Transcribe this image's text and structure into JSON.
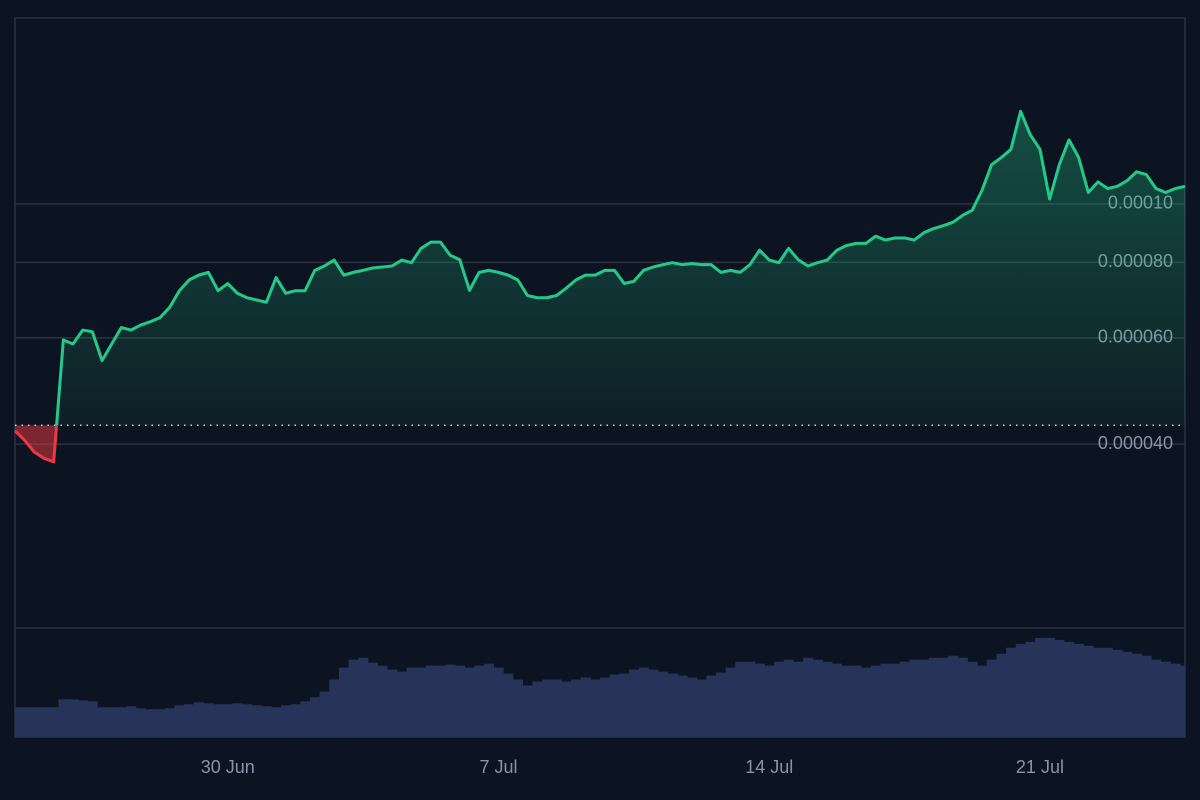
{
  "chart_data": {
    "type": "line",
    "log_scale": true,
    "grid": true,
    "baseline": 4.3e-05,
    "up_color": "#22c98a",
    "down_color": "#ea3943",
    "ylim": [
      2e-05,
      0.0002
    ],
    "yticks": [
      {
        "value": 4e-05,
        "label": "0.000040"
      },
      {
        "value": 6e-05,
        "label": "0.000060"
      },
      {
        "value": 8e-05,
        "label": "0.000080"
      },
      {
        "value": 0.0001,
        "label": "0.00010"
      }
    ],
    "categories": [
      null,
      null,
      null,
      null,
      null,
      null,
      null,
      null,
      null,
      null,
      null,
      null,
      null,
      null,
      null,
      null,
      null,
      null,
      null,
      null,
      null,
      null,
      "30 Jun",
      null,
      null,
      null,
      null,
      null,
      null,
      null,
      null,
      null,
      null,
      null,
      null,
      null,
      null,
      null,
      null,
      null,
      null,
      null,
      null,
      null,
      null,
      null,
      null,
      null,
      null,
      null,
      "7 Jul",
      null,
      null,
      null,
      null,
      null,
      null,
      null,
      null,
      null,
      null,
      null,
      null,
      null,
      null,
      null,
      null,
      null,
      null,
      null,
      null,
      null,
      null,
      null,
      null,
      null,
      null,
      null,
      "14 Jul",
      null,
      null,
      null,
      null,
      null,
      null,
      null,
      null,
      null,
      null,
      null,
      null,
      null,
      null,
      null,
      null,
      null,
      null,
      null,
      null,
      null,
      null,
      null,
      null,
      null,
      null,
      null,
      "21 Jul",
      null,
      null,
      null,
      null,
      null,
      null,
      null,
      null,
      null,
      null,
      null,
      null,
      null,
      null,
      null
    ],
    "series": [
      {
        "values": [
          4.21e-05,
          4.06e-05,
          3.88e-05,
          3.79e-05,
          3.74e-05,
          5.95e-05,
          5.86e-05,
          6.18e-05,
          6.14e-05,
          5.5e-05,
          5.86e-05,
          6.24e-05,
          6.18e-05,
          6.3e-05,
          6.38e-05,
          6.48e-05,
          6.74e-05,
          7.18e-05,
          7.48e-05,
          7.62e-05,
          7.7e-05,
          7.18e-05,
          7.38e-05,
          7.11e-05,
          6.99e-05,
          6.93e-05,
          6.87e-05,
          7.55e-05,
          7.11e-05,
          7.18e-05,
          7.18e-05,
          7.76e-05,
          7.89e-05,
          8.07e-05,
          7.62e-05,
          7.7e-05,
          7.76e-05,
          7.83e-05,
          7.86e-05,
          7.89e-05,
          8.07e-05,
          7.99e-05,
          8.44e-05,
          8.64e-05,
          8.64e-05,
          8.22e-05,
          8.08e-05,
          7.19e-05,
          7.7e-05,
          7.76e-05,
          7.7e-05,
          7.62e-05,
          7.48e-05,
          7.05e-05,
          6.99e-05,
          6.99e-05,
          7.05e-05,
          7.25e-05,
          7.48e-05,
          7.62e-05,
          7.62e-05,
          7.76e-05,
          7.76e-05,
          7.38e-05,
          7.44e-05,
          7.76e-05,
          7.86e-05,
          7.93e-05,
          7.99e-05,
          7.93e-05,
          7.96e-05,
          7.93e-05,
          7.93e-05,
          7.7e-05,
          7.76e-05,
          7.7e-05,
          7.93e-05,
          8.38e-05,
          8.07e-05,
          7.99e-05,
          8.44e-05,
          8.08e-05,
          7.89e-05,
          7.99e-05,
          8.07e-05,
          8.38e-05,
          8.53e-05,
          8.6e-05,
          8.6e-05,
          8.84e-05,
          8.71e-05,
          8.78e-05,
          8.78e-05,
          8.71e-05,
          8.96e-05,
          9.1e-05,
          9.2e-05,
          9.32e-05,
          9.57e-05,
          9.76e-05,
          0.0001052,
          0.0001161,
          0.0001193,
          0.0001231,
          0.0001423,
          0.0001301,
          0.0001231,
          0.0001018,
          0.0001161,
          0.0001276,
          0.0001193,
          0.0001044,
          0.0001087,
          0.000106,
          0.0001069,
          0.0001092,
          0.000113,
          0.0001118,
          0.000106,
          0.0001044,
          0.000106,
          0.0001069
        ]
      }
    ],
    "volume": {
      "color": "#28335a",
      "ylim": [
        0,
        110
      ],
      "values": [
        30,
        30,
        30,
        30,
        30,
        38,
        38,
        37,
        36,
        30,
        30,
        30,
        31,
        29,
        28,
        28,
        29,
        32,
        33,
        35,
        34,
        33,
        33,
        34,
        33,
        32,
        31,
        30,
        32,
        33,
        36,
        40,
        46,
        58,
        70,
        78,
        80,
        75,
        72,
        68,
        66,
        70,
        70,
        72,
        72,
        73,
        72,
        70,
        72,
        74,
        70,
        64,
        58,
        52,
        56,
        58,
        58,
        56,
        58,
        60,
        58,
        60,
        63,
        64,
        68,
        70,
        68,
        66,
        64,
        62,
        60,
        58,
        62,
        65,
        70,
        76,
        76,
        74,
        72,
        76,
        78,
        76,
        80,
        78,
        76,
        74,
        72,
        72,
        70,
        72,
        74,
        74,
        76,
        78,
        78,
        80,
        80,
        82,
        80,
        76,
        72,
        78,
        84,
        90,
        94,
        96,
        100,
        100,
        98,
        96,
        94,
        92,
        90,
        90,
        88,
        86,
        84,
        82,
        78,
        76,
        74,
        72
      ]
    }
  }
}
